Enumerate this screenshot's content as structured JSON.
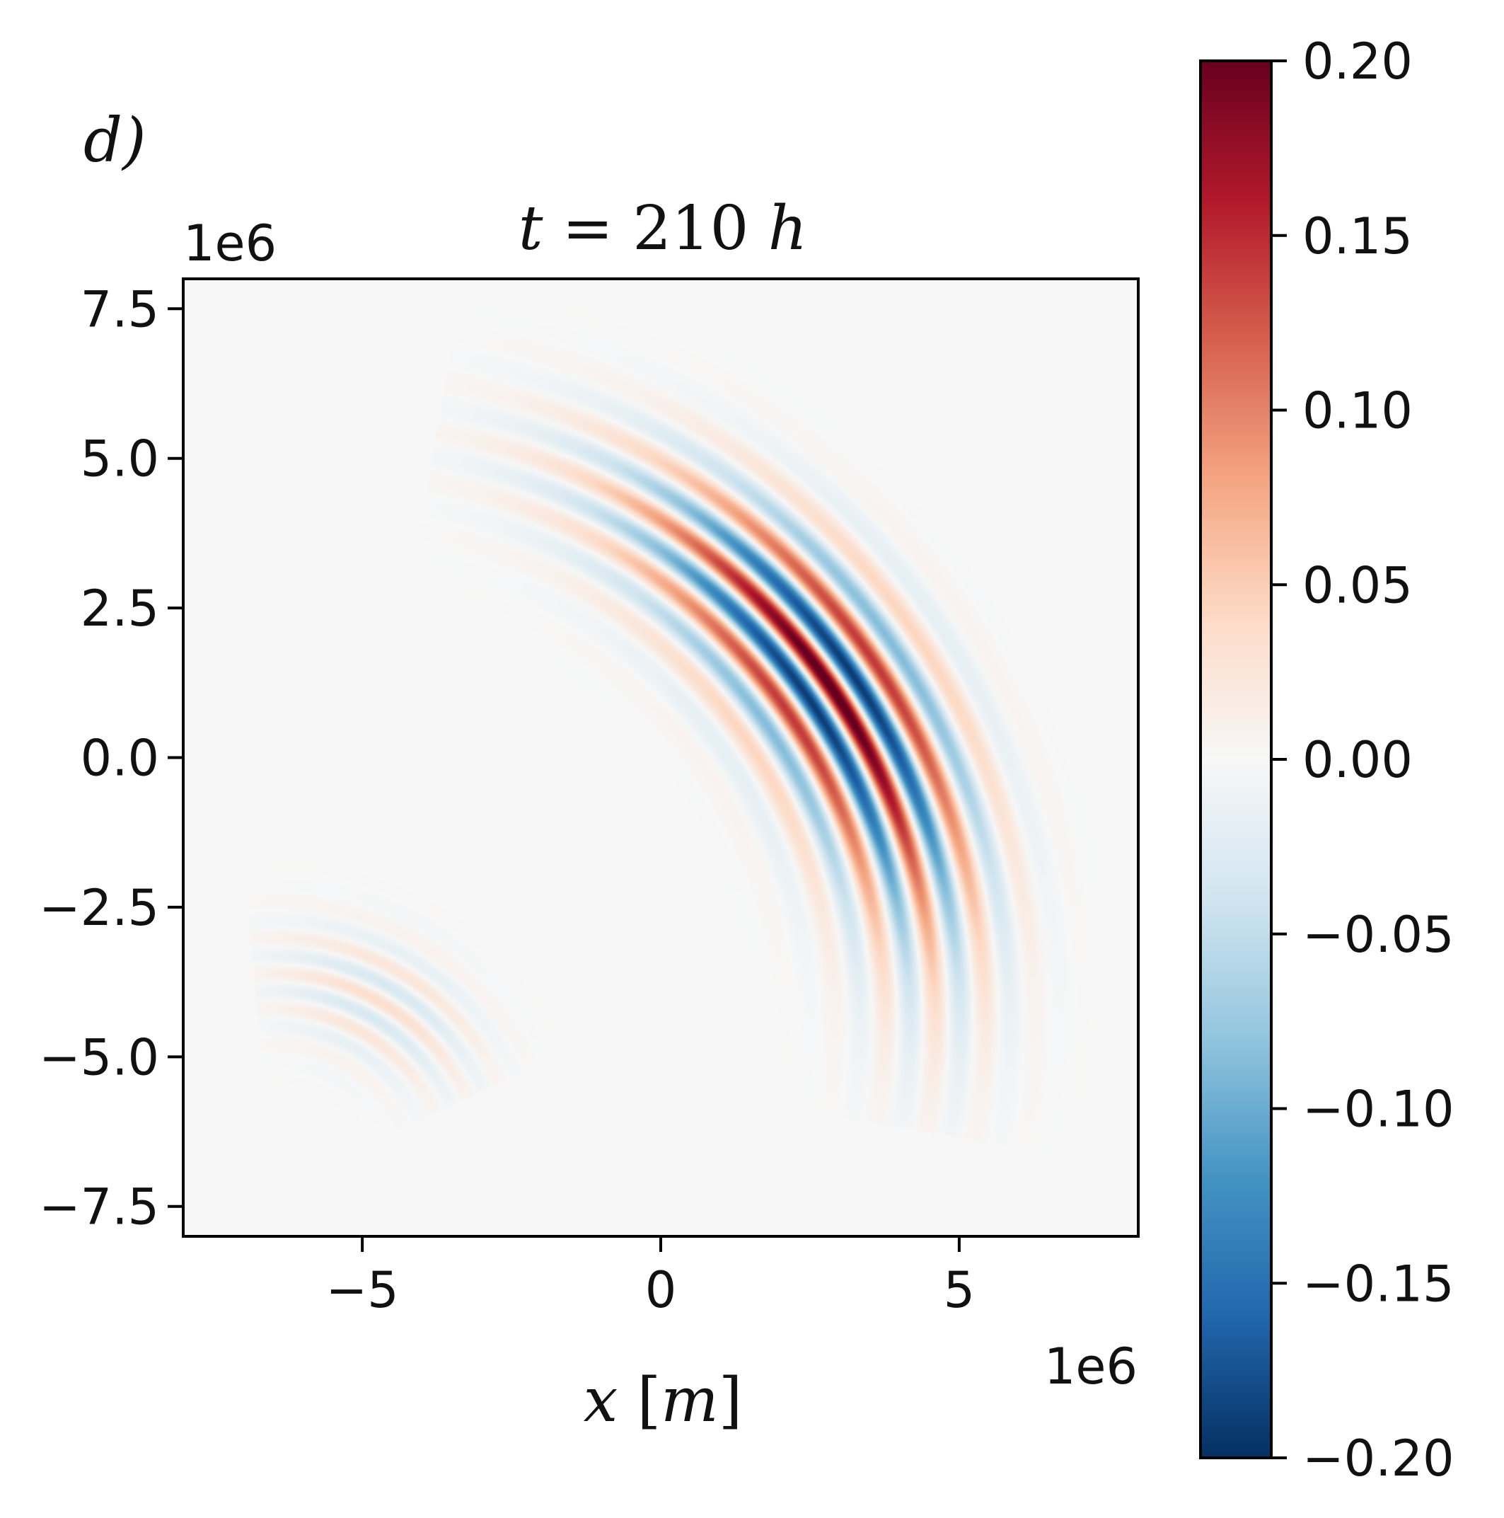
{
  "chart_data": {
    "type": "heatmap",
    "panel_label": "d)",
    "title": "t = 210 h",
    "title_parts": {
      "var": "t",
      "eq": " = 210 ",
      "unit": "h"
    },
    "xlabel": "x [m]",
    "xlabel_parts": {
      "var": "x",
      "open": " [",
      "unit": "m",
      "close": "]"
    },
    "ylabel": "",
    "x_offset_label": "1e6",
    "y_offset_label": "1e6",
    "xlim": [
      -8.0,
      8.0
    ],
    "ylim": [
      -8.0,
      8.0
    ],
    "x_ticks": [
      -5,
      0,
      5
    ],
    "x_tick_labels": [
      "−5",
      "0",
      "5"
    ],
    "y_ticks": [
      7.5,
      5.0,
      2.5,
      0.0,
      -2.5,
      -5.0,
      -7.5
    ],
    "y_tick_labels": [
      "7.5",
      "5.0",
      "2.5",
      "0.0",
      "−2.5",
      "−5.0",
      "−7.5"
    ],
    "colorbar": {
      "colormap": "RdBu_r",
      "range": [
        -0.2,
        0.2
      ],
      "ticks": [
        0.2,
        0.15,
        0.1,
        0.05,
        0.0,
        -0.05,
        -0.1,
        -0.15,
        -0.2
      ],
      "tick_labels": [
        "0.20",
        "0.15",
        "0.10",
        "0.05",
        "0.00",
        "−0.05",
        "−0.10",
        "−0.15",
        "−0.20"
      ]
    },
    "wave_packets": [
      {
        "name": "main",
        "arc_center": [
          -5.5,
          -4.5
        ],
        "radius": 10.1,
        "center_angle_deg": 34,
        "angular_width_deg": 17,
        "wavelength": 0.85,
        "radial_width": 0.95,
        "amplitude": 0.21,
        "angle_min_deg": -10,
        "angle_max_deg": 80
      },
      {
        "name": "secondary",
        "arc_center": [
          -6.5,
          -7.2
        ],
        "radius": 3.6,
        "center_angle_deg": 60,
        "angular_width_deg": 20,
        "wavelength": 0.6,
        "radial_width": 0.7,
        "amplitude": 0.035,
        "angle_min_deg": 25,
        "angle_max_deg": 95
      }
    ]
  }
}
